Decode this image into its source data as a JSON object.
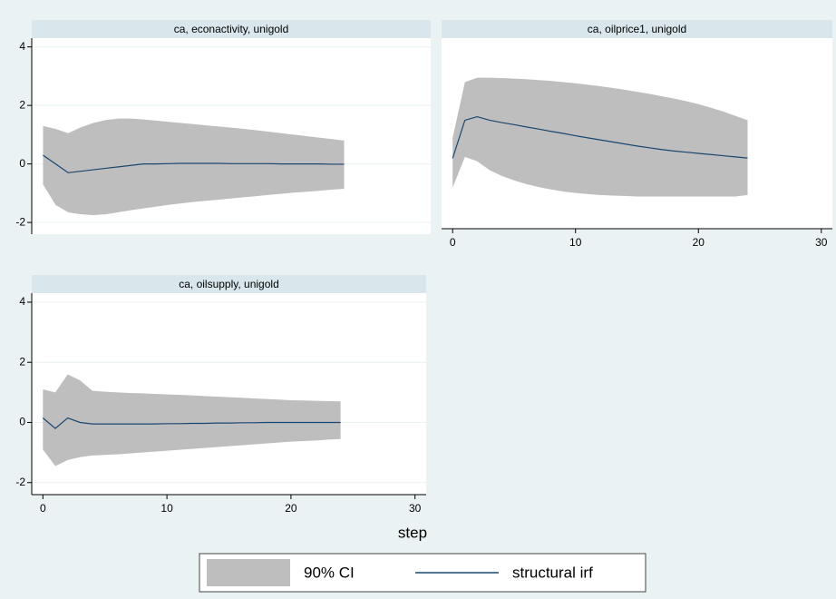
{
  "chart_data": [
    {
      "type": "line",
      "title": "ca, econactivity, unigold",
      "x": [
        0,
        1,
        2,
        3,
        4,
        5,
        6,
        7,
        8,
        9,
        10,
        11,
        12,
        13,
        14,
        15,
        16,
        17,
        18,
        19,
        20,
        21,
        22,
        23,
        24
      ],
      "series": [
        {
          "name": "90% CI",
          "color": "#bebebe",
          "upper": [
            1.3,
            1.2,
            1.05,
            1.25,
            1.4,
            1.5,
            1.55,
            1.55,
            1.52,
            1.48,
            1.44,
            1.4,
            1.36,
            1.32,
            1.28,
            1.24,
            1.2,
            1.15,
            1.1,
            1.05,
            1.0,
            0.95,
            0.9,
            0.85,
            0.8
          ],
          "lower": [
            -0.7,
            -1.4,
            -1.65,
            -1.72,
            -1.75,
            -1.72,
            -1.65,
            -1.58,
            -1.52,
            -1.46,
            -1.4,
            -1.35,
            -1.3,
            -1.26,
            -1.22,
            -1.18,
            -1.14,
            -1.1,
            -1.06,
            -1.02,
            -0.98,
            -0.95,
            -0.92,
            -0.88,
            -0.85
          ]
        },
        {
          "name": "structural irf",
          "color": "#1a476f",
          "values": [
            0.3,
            0.0,
            -0.3,
            -0.25,
            -0.2,
            -0.15,
            -0.1,
            -0.05,
            0.0,
            0.0,
            0.01,
            0.02,
            0.02,
            0.02,
            0.02,
            0.01,
            0.01,
            0.01,
            0.01,
            0.0,
            0.0,
            0.0,
            0.0,
            -0.01,
            -0.01
          ]
        }
      ],
      "xlim": [
        -0.9,
        30.9
      ],
      "ylim": [
        -2.4,
        4.3
      ],
      "yticks": [
        -2,
        0,
        2,
        4
      ]
    },
    {
      "type": "line",
      "title": "ca, oilprice1, unigold",
      "x": [
        0,
        1,
        2,
        3,
        4,
        5,
        6,
        7,
        8,
        9,
        10,
        11,
        12,
        13,
        14,
        15,
        16,
        17,
        18,
        19,
        20,
        21,
        22,
        23,
        24
      ],
      "series": [
        {
          "name": "90% CI",
          "color": "#bebebe",
          "upper": [
            0.9,
            2.8,
            2.95,
            2.95,
            2.94,
            2.92,
            2.9,
            2.87,
            2.84,
            2.8,
            2.76,
            2.71,
            2.66,
            2.6,
            2.54,
            2.47,
            2.4,
            2.32,
            2.24,
            2.15,
            2.05,
            1.93,
            1.8,
            1.65,
            1.5
          ],
          "lower": [
            -0.8,
            0.25,
            0.1,
            -0.2,
            -0.4,
            -0.55,
            -0.68,
            -0.78,
            -0.86,
            -0.93,
            -0.98,
            -1.02,
            -1.05,
            -1.07,
            -1.08,
            -1.1,
            -1.1,
            -1.1,
            -1.1,
            -1.1,
            -1.1,
            -1.1,
            -1.1,
            -1.1,
            -1.05
          ]
        },
        {
          "name": "structural irf",
          "color": "#1a476f",
          "values": [
            0.2,
            1.5,
            1.62,
            1.5,
            1.42,
            1.35,
            1.27,
            1.2,
            1.12,
            1.05,
            0.97,
            0.9,
            0.83,
            0.76,
            0.69,
            0.62,
            0.56,
            0.5,
            0.45,
            0.41,
            0.37,
            0.33,
            0.29,
            0.25,
            0.21
          ]
        }
      ],
      "xlim": [
        -0.9,
        30.9
      ],
      "ylim": [
        -2.2,
        4.3
      ],
      "xticks": [
        0,
        10,
        20,
        30
      ]
    },
    {
      "type": "line",
      "title": "ca, oilsupply, unigold",
      "x": [
        0,
        1,
        2,
        3,
        4,
        5,
        6,
        7,
        8,
        9,
        10,
        11,
        12,
        13,
        14,
        15,
        16,
        17,
        18,
        19,
        20,
        21,
        22,
        23,
        24
      ],
      "series": [
        {
          "name": "90% CI",
          "color": "#bebebe",
          "upper": [
            1.1,
            1.0,
            1.6,
            1.4,
            1.05,
            1.02,
            1.0,
            0.98,
            0.97,
            0.95,
            0.93,
            0.92,
            0.9,
            0.88,
            0.86,
            0.84,
            0.82,
            0.8,
            0.78,
            0.76,
            0.74,
            0.73,
            0.72,
            0.71,
            0.7
          ],
          "lower": [
            -0.9,
            -1.45,
            -1.25,
            -1.15,
            -1.1,
            -1.08,
            -1.06,
            -1.03,
            -1.0,
            -0.97,
            -0.94,
            -0.91,
            -0.88,
            -0.85,
            -0.82,
            -0.79,
            -0.76,
            -0.73,
            -0.7,
            -0.67,
            -0.64,
            -0.62,
            -0.6,
            -0.57,
            -0.55
          ]
        },
        {
          "name": "structural irf",
          "color": "#1a476f",
          "values": [
            0.15,
            -0.2,
            0.15,
            0.0,
            -0.05,
            -0.05,
            -0.05,
            -0.05,
            -0.05,
            -0.05,
            -0.04,
            -0.04,
            -0.03,
            -0.03,
            -0.02,
            -0.02,
            -0.01,
            -0.01,
            0.0,
            0.0,
            0.0,
            0.0,
            0.0,
            0.0,
            0.0
          ]
        }
      ],
      "xlim": [
        -0.9,
        30.9
      ],
      "ylim": [
        -2.4,
        4.3
      ],
      "yticks": [
        -2,
        0,
        2,
        4
      ],
      "xticks": [
        0,
        10,
        20,
        30
      ]
    }
  ],
  "x_label": "step"
}
